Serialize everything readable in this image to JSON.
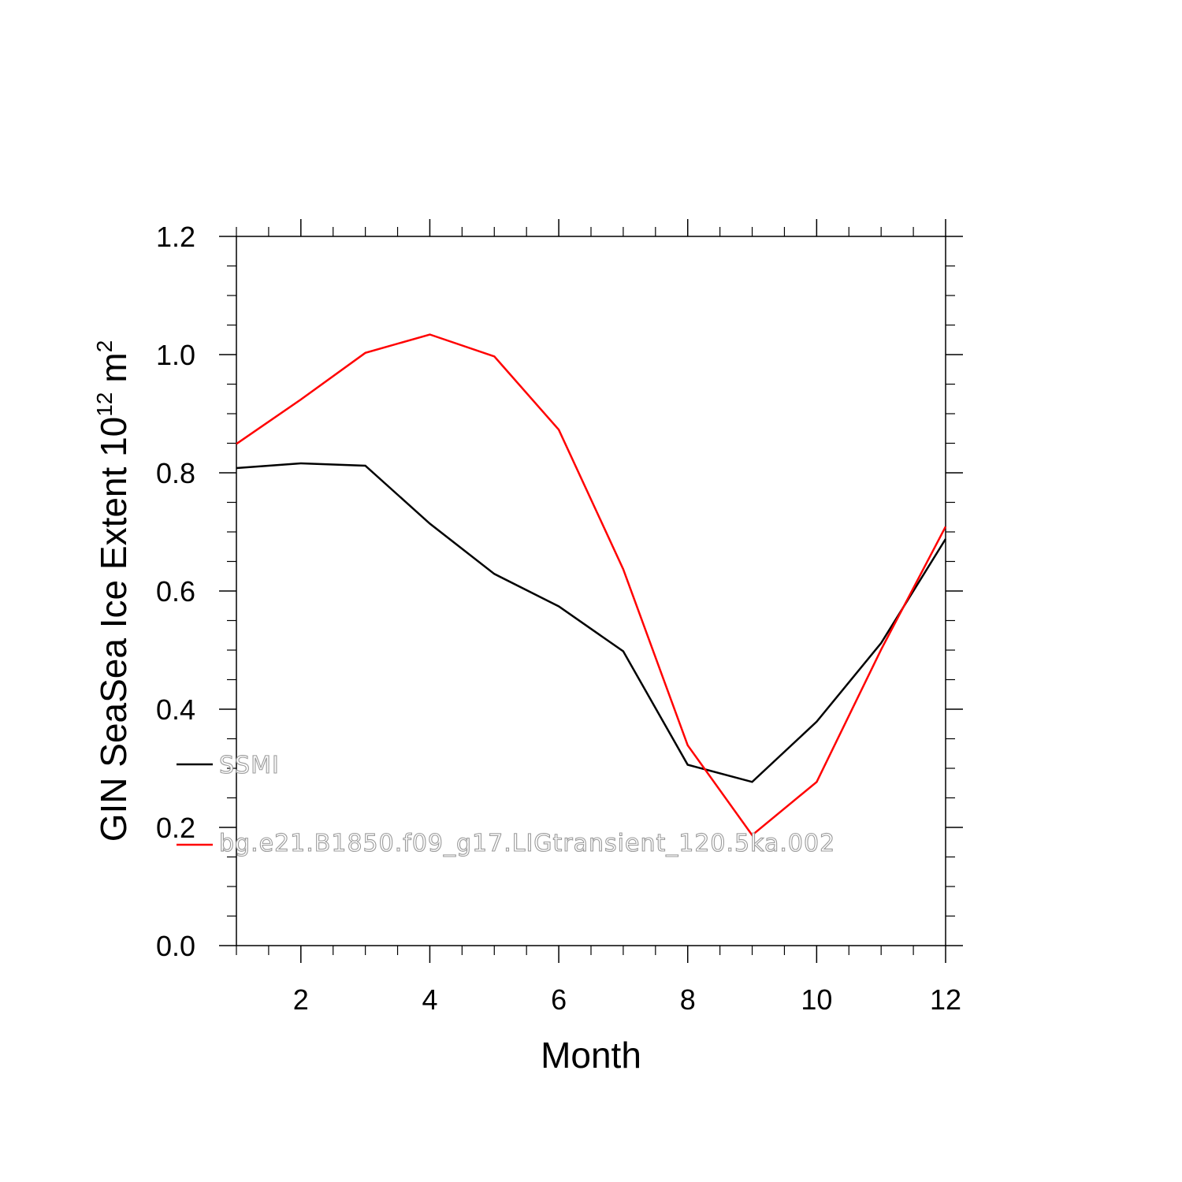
{
  "chart_data": {
    "type": "line",
    "title": "",
    "xlabel": "Month",
    "ylabel": "GIN SeaSea Ice Extent 10",
    "ylabel_superscript": "12",
    "ylabel_unit": "m",
    "ylabel_unit_superscript": "2",
    "xlim": [
      1,
      12
    ],
    "ylim": [
      0,
      1.2
    ],
    "x_ticks": [
      2,
      4,
      6,
      8,
      10,
      12
    ],
    "x_tick_labels": [
      "2",
      "4",
      "6",
      "8",
      "10",
      "12"
    ],
    "y_ticks": [
      0,
      0.2,
      0.4,
      0.6,
      0.8,
      1.0,
      1.2
    ],
    "y_tick_labels": [
      "0.0",
      "0.2",
      "0.4",
      "0.6",
      "0.8",
      "1.0",
      "1.2"
    ],
    "grid": false,
    "legend_position": "lower-left inside",
    "x": [
      1,
      2,
      3,
      4,
      5,
      6,
      7,
      8,
      9,
      10,
      11,
      12
    ],
    "series": [
      {
        "name": "SSMI",
        "color": "#000000",
        "values": [
          0.808,
          0.816,
          0.812,
          0.714,
          0.629,
          0.574,
          0.498,
          0.306,
          0.277,
          0.379,
          0.512,
          0.688
        ]
      },
      {
        "name": "bg.e21.B1850.f09_g17.LIGtransient_120.5ka.002",
        "color": "#ff0000",
        "values": [
          0.849,
          0.924,
          1.003,
          1.034,
          0.997,
          0.873,
          0.637,
          0.339,
          0.187,
          0.277,
          0.501,
          0.709
        ]
      }
    ]
  }
}
